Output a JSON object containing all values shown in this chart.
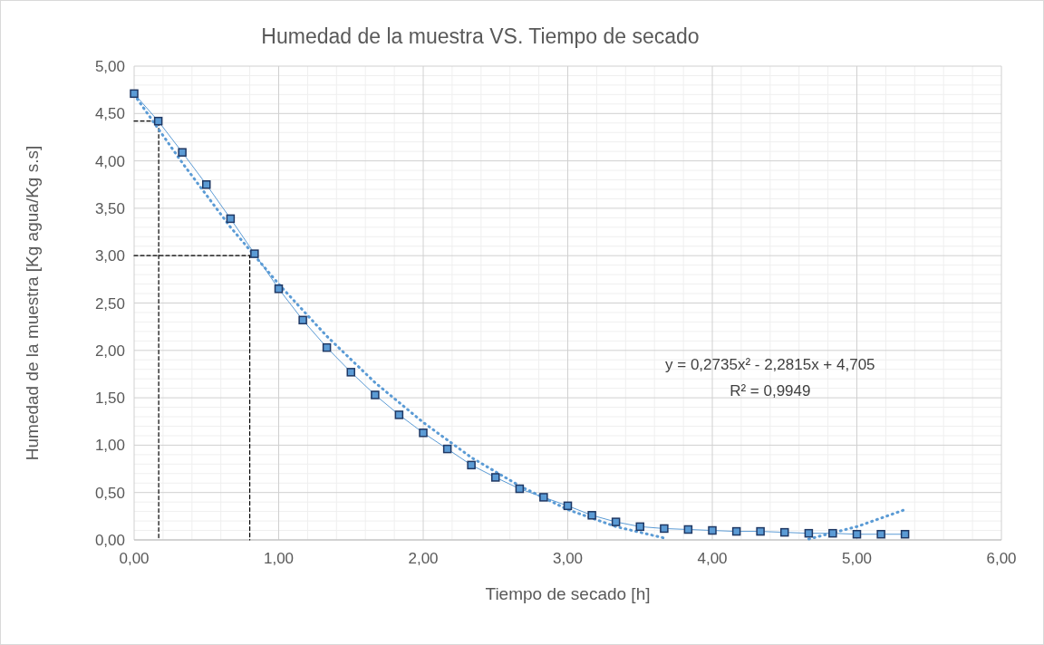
{
  "chart_data": {
    "type": "line",
    "title": "Humedad de la muestra VS. Tiempo de secado",
    "xlabel": "Tiempo de secado [h]",
    "ylabel": "Humedad de la muestra [Kg agua/Kg s.s]",
    "xlim": [
      0,
      6
    ],
    "xticks": [
      {
        "value": 0,
        "label": "0,00"
      },
      {
        "value": 1,
        "label": "1,00"
      },
      {
        "value": 2,
        "label": "2,00"
      },
      {
        "value": 3,
        "label": "3,00"
      },
      {
        "value": 4,
        "label": "4,00"
      },
      {
        "value": 5,
        "label": "5,00"
      },
      {
        "value": 6,
        "label": "6,00"
      }
    ],
    "ylim": [
      0,
      5
    ],
    "yticks": [
      {
        "value": 0,
        "label": "0,00"
      },
      {
        "value": 0.5,
        "label": "0,50"
      },
      {
        "value": 1,
        "label": "1,00"
      },
      {
        "value": 1.5,
        "label": "1,50"
      },
      {
        "value": 2,
        "label": "2,00"
      },
      {
        "value": 2.5,
        "label": "2,50"
      },
      {
        "value": 3,
        "label": "3,00"
      },
      {
        "value": 3.5,
        "label": "3,50"
      },
      {
        "value": 4,
        "label": "4,00"
      },
      {
        "value": 4.5,
        "label": "4,50"
      },
      {
        "value": 5,
        "label": "5,00"
      }
    ],
    "grid": true,
    "series": [
      {
        "color": "#5b9bd5",
        "marker": "square",
        "line_style": "solid",
        "x": [
          0,
          0.167,
          0.333,
          0.5,
          0.667,
          0.833,
          1,
          1.167,
          1.333,
          1.5,
          1.667,
          1.833,
          2,
          2.167,
          2.333,
          2.5,
          2.667,
          2.833,
          3,
          3.167,
          3.333,
          3.5,
          3.667,
          3.833,
          4,
          4.167,
          4.333,
          4.5,
          4.667,
          4.833,
          5,
          5.167,
          5.333
        ],
        "values": [
          4.71,
          4.42,
          4.09,
          3.75,
          3.39,
          3.02,
          2.65,
          2.32,
          2.03,
          1.77,
          1.53,
          1.32,
          1.13,
          0.96,
          0.79,
          0.66,
          0.54,
          0.45,
          0.36,
          0.26,
          0.19,
          0.14,
          0.12,
          0.11,
          0.1,
          0.09,
          0.09,
          0.08,
          0.07,
          0.07,
          0.06,
          0.06,
          0.06
        ]
      },
      {
        "type": "line",
        "color": "#5b9bd5",
        "marker": "none",
        "line_style": "dotted",
        "x": [
          0,
          0.333,
          0.667,
          1,
          1.333,
          1.667,
          2,
          2.333,
          2.667,
          3,
          3.333,
          3.667,
          4,
          4.333,
          4.667,
          5,
          5.333
        ],
        "values": [
          4.7,
          3.98,
          3.3,
          2.7,
          2.15,
          1.66,
          1.24,
          0.87,
          0.57,
          0.32,
          0.14,
          0.02,
          null,
          null,
          0.01,
          0.14,
          0.32
        ]
      },
      {
        "type": "line",
        "color": "#000000",
        "marker": "none",
        "line_style": "dashed",
        "x": [
          0,
          0.17,
          0.17
        ],
        "values": [
          4.42,
          4.42,
          0
        ]
      },
      {
        "type": "line",
        "color": "#000000",
        "marker": "none",
        "line_style": "dashed",
        "x": [
          0,
          0.8,
          0.8
        ],
        "values": [
          3,
          3,
          0
        ]
      }
    ],
    "annotations": [
      "y = 0,2735x² - 2,2815x + 4,705",
      "R² = 0,9949"
    ]
  }
}
